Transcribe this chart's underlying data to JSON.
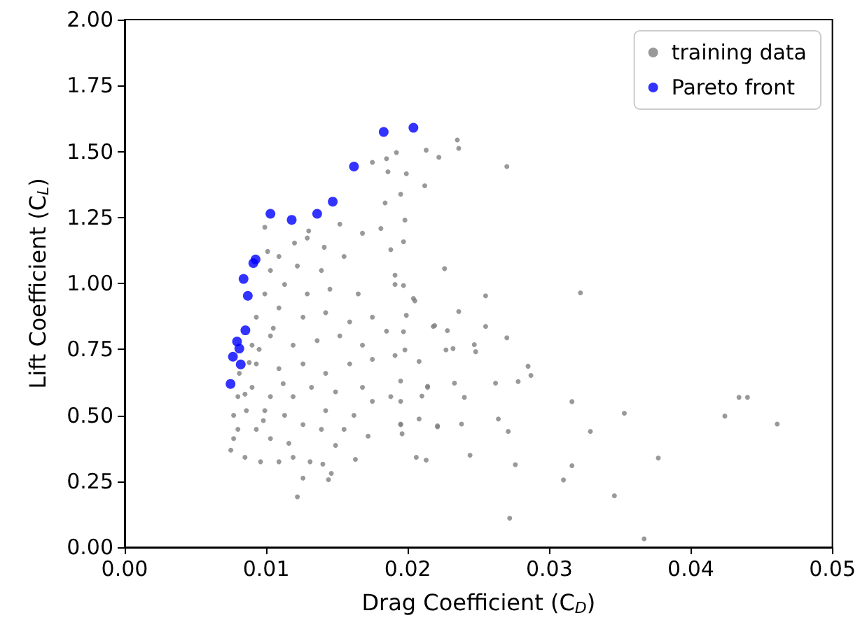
{
  "chart_data": {
    "type": "scatter",
    "xlabel": "Drag Coefficient (C$_{D}$)",
    "ylabel": "Lift Coefficient (C$_{L}$)",
    "xlim": [
      0,
      0.05
    ],
    "xticks": [
      {
        "value": 0,
        "label": "0.00"
      },
      {
        "value": 0.01,
        "label": "0.01"
      },
      {
        "value": 0.02,
        "label": "0.02"
      },
      {
        "value": 0.03,
        "label": "0.03"
      },
      {
        "value": 0.04,
        "label": "0.04"
      },
      {
        "value": 0.05,
        "label": "0.05"
      }
    ],
    "ylim": [
      0,
      2
    ],
    "yticks": [
      {
        "value": 0,
        "label": "0.00"
      },
      {
        "value": 0.25,
        "label": "0.25"
      },
      {
        "value": 0.5,
        "label": "0.50"
      },
      {
        "value": 0.75,
        "label": "0.75"
      },
      {
        "value": 1,
        "label": "1.00"
      },
      {
        "value": 1.25,
        "label": "1.25"
      },
      {
        "value": 1.5,
        "label": "1.50"
      },
      {
        "value": 1.75,
        "label": "1.75"
      },
      {
        "value": 2,
        "label": "2.00"
      }
    ],
    "grid": false,
    "legend": "top right",
    "marker": "circle",
    "series": [
      {
        "name": "training data",
        "color": "#808080",
        "x": [
          0.0235,
          0.0236,
          0.0213,
          0.0222,
          0.027,
          0.0192,
          0.0199,
          0.0212,
          0.0195,
          0.0198,
          0.0197,
          0.0226,
          0.0255,
          0.0322,
          0.0236,
          0.0255,
          0.027,
          0.0247,
          0.0248,
          0.0285,
          0.0287,
          0.0278,
          0.0262,
          0.0233,
          0.024,
          0.0316,
          0.0353,
          0.0434,
          0.044,
          0.0424,
          0.0461,
          0.0329,
          0.0264,
          0.0271,
          0.0238,
          0.0221,
          0.0244,
          0.0276,
          0.0316,
          0.031,
          0.0346,
          0.0377,
          0.0272,
          0.0367,
          0.0206,
          0.0213,
          0.0208,
          0.0195,
          0.0214,
          0.021,
          0.0219,
          0.0228,
          0.0232,
          0.0208,
          0.0199,
          0.0205,
          0.0197,
          0.0191,
          0.0197,
          0.0191,
          0.0196,
          0.0195,
          0.0099,
          0.0122,
          0.0126,
          0.0144,
          0.0146,
          0.0163,
          0.0172,
          0.0075,
          0.0077,
          0.0085,
          0.0096,
          0.0109,
          0.0119,
          0.0131,
          0.014,
          0.0149,
          0.0077,
          0.008,
          0.0086,
          0.0093,
          0.0103,
          0.0116,
          0.0126,
          0.0139,
          0.0155,
          0.0099,
          0.0113,
          0.0142,
          0.0162,
          0.0175,
          0.008,
          0.009,
          0.0103,
          0.0119,
          0.0132,
          0.0149,
          0.0168,
          0.0188,
          0.0081,
          0.0093,
          0.0109,
          0.0126,
          0.0142,
          0.0159,
          0.0175,
          0.0198,
          0.009,
          0.0103,
          0.0119,
          0.0136,
          0.0152,
          0.0168,
          0.0185,
          0.0093,
          0.0109,
          0.0126,
          0.0142,
          0.0159,
          0.0175,
          0.0099,
          0.0113,
          0.0129,
          0.0145,
          0.0165,
          0.0103,
          0.0122,
          0.0139,
          0.0155,
          0.0109,
          0.0129,
          0.0152,
          0.0168,
          0.0181,
          0.0188,
          0.0191,
          0.0204,
          0.0218,
          0.0227,
          0.0195,
          0.0195,
          0.0221,
          0.0214,
          0.0175,
          0.0185,
          0.0186,
          0.0184,
          0.013,
          0.0101,
          0.012,
          0.0141,
          0.0088,
          0.0095,
          0.0105,
          0.0112,
          0.0085,
          0.0098
        ],
        "values": [
          1.544,
          1.512,
          1.505,
          1.478,
          1.443,
          1.496,
          1.416,
          1.37,
          1.338,
          1.24,
          1.158,
          1.056,
          0.953,
          0.964,
          0.893,
          0.837,
          0.794,
          0.768,
          0.741,
          0.686,
          0.651,
          0.628,
          0.622,
          0.622,
          0.568,
          0.552,
          0.508,
          0.568,
          0.568,
          0.497,
          0.467,
          0.439,
          0.486,
          0.439,
          0.467,
          0.46,
          0.349,
          0.313,
          0.309,
          0.255,
          0.195,
          0.338,
          0.11,
          0.032,
          0.341,
          0.33,
          0.486,
          0.63,
          0.61,
          0.573,
          0.84,
          0.821,
          0.753,
          0.704,
          0.879,
          0.934,
          0.992,
          1.031,
          0.817,
          0.727,
          0.43,
          0.467,
          1.213,
          0.191,
          0.262,
          0.256,
          0.28,
          0.333,
          0.421,
          0.368,
          0.412,
          0.341,
          0.324,
          0.324,
          0.341,
          0.324,
          0.315,
          0.386,
          0.5,
          0.447,
          0.518,
          0.447,
          0.412,
          0.394,
          0.465,
          0.447,
          0.447,
          0.518,
          0.5,
          0.518,
          0.5,
          0.553,
          0.571,
          0.606,
          0.571,
          0.571,
          0.606,
          0.589,
          0.606,
          0.571,
          0.659,
          0.695,
          0.677,
          0.695,
          0.659,
          0.695,
          0.712,
          0.748,
          0.766,
          0.801,
          0.766,
          0.783,
          0.801,
          0.766,
          0.819,
          0.872,
          0.907,
          0.872,
          0.889,
          0.854,
          0.872,
          0.96,
          0.996,
          0.96,
          0.978,
          0.96,
          1.049,
          1.066,
          1.049,
          1.102,
          1.102,
          1.172,
          1.225,
          1.19,
          1.208,
          1.128,
          0.996,
          0.943,
          0.837,
          0.748,
          0.553,
          0.465,
          0.456,
          0.606,
          1.459,
          1.473,
          1.423,
          1.305,
          1.199,
          1.121,
          1.153,
          1.137,
          0.7,
          0.75,
          0.83,
          0.62,
          0.58,
          0.48
        ]
      },
      {
        "name": "Pareto front",
        "color": "#0000ff",
        "x": [
          0.0204,
          0.0183,
          0.0162,
          0.0147,
          0.0136,
          0.0118,
          0.0103,
          0.00925,
          0.00909,
          0.0084,
          0.0087,
          0.00853,
          0.00794,
          0.0081,
          0.00765,
          0.0082,
          0.00748
        ],
        "values": [
          1.59,
          1.574,
          1.443,
          1.31,
          1.264,
          1.241,
          1.264,
          1.091,
          1.077,
          1.017,
          0.953,
          0.822,
          0.78,
          0.753,
          0.722,
          0.693,
          0.619
        ]
      }
    ]
  }
}
